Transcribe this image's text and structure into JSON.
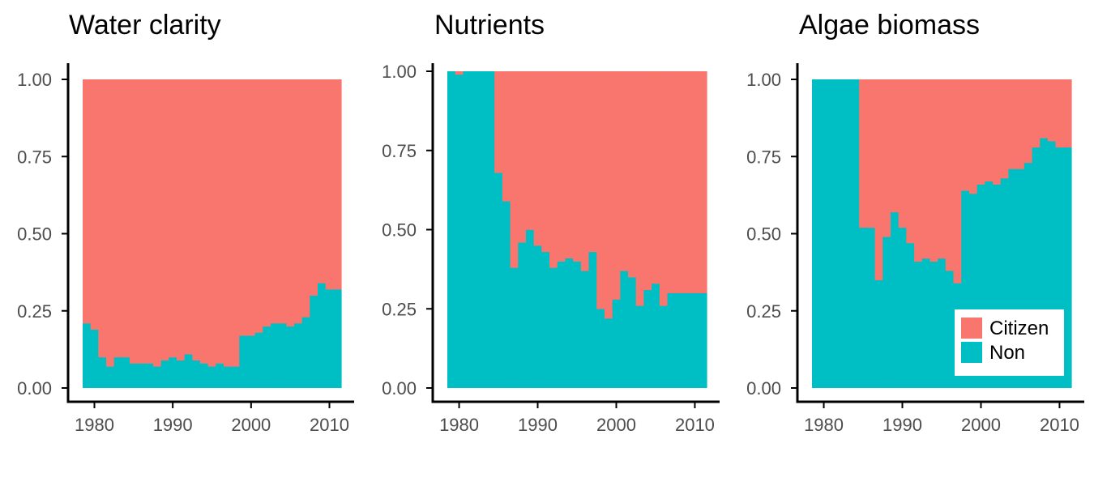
{
  "colors": {
    "citizen": "#F8766D",
    "non": "#00BFC4",
    "axis": "#000000",
    "tick_text": "#4d4d4d"
  },
  "legend": {
    "position": "bottom-right of third panel",
    "entries": [
      {
        "label": "Citizen",
        "color": "#F8766D"
      },
      {
        "label": "Non",
        "color": "#00BFC4"
      }
    ]
  },
  "chart_data": [
    {
      "type": "bar",
      "stacked": "fill",
      "title": "Water clarity",
      "xlabel": "",
      "ylabel": "",
      "xlim": [
        1978.4,
        2011.8
      ],
      "ylim": [
        0,
        1
      ],
      "x_ticks": [
        1980,
        1990,
        2000,
        2010
      ],
      "y_ticks": [
        "0.00",
        "0.25",
        "0.50",
        "0.75",
        "1.00"
      ],
      "x": [
        1979,
        1980,
        1981,
        1982,
        1983,
        1984,
        1985,
        1986,
        1987,
        1988,
        1989,
        1990,
        1991,
        1992,
        1993,
        1994,
        1995,
        1996,
        1997,
        1998,
        1999,
        2000,
        2001,
        2002,
        2003,
        2004,
        2005,
        2006,
        2007,
        2008,
        2009,
        2010,
        2011
      ],
      "series": [
        {
          "name": "Non",
          "values": [
            0.21,
            0.19,
            0.1,
            0.07,
            0.1,
            0.1,
            0.08,
            0.08,
            0.08,
            0.07,
            0.09,
            0.1,
            0.09,
            0.11,
            0.09,
            0.08,
            0.07,
            0.08,
            0.07,
            0.07,
            0.17,
            0.17,
            0.18,
            0.2,
            0.21,
            0.21,
            0.2,
            0.21,
            0.23,
            0.3,
            0.34,
            0.32,
            0.32
          ]
        },
        {
          "name": "Citizen",
          "values": [
            0.79,
            0.81,
            0.9,
            0.93,
            0.9,
            0.9,
            0.92,
            0.92,
            0.92,
            0.93,
            0.91,
            0.9,
            0.91,
            0.89,
            0.91,
            0.92,
            0.93,
            0.92,
            0.93,
            0.93,
            0.83,
            0.83,
            0.82,
            0.8,
            0.79,
            0.79,
            0.8,
            0.79,
            0.77,
            0.7,
            0.66,
            0.68,
            0.68
          ]
        }
      ]
    },
    {
      "type": "bar",
      "stacked": "fill",
      "title": "Nutrients",
      "xlabel": "",
      "ylabel": "",
      "xlim": [
        1978.4,
        2011.8
      ],
      "ylim": [
        0,
        1
      ],
      "x_ticks": [
        1980,
        1990,
        2000,
        2010
      ],
      "y_ticks": [
        "0.00",
        "0.25",
        "0.50",
        "0.75",
        "1.00"
      ],
      "x": [
        1979,
        1980,
        1981,
        1982,
        1983,
        1984,
        1985,
        1986,
        1987,
        1988,
        1989,
        1990,
        1991,
        1992,
        1993,
        1994,
        1995,
        1996,
        1997,
        1998,
        1999,
        2000,
        2001,
        2002,
        2003,
        2004,
        2005,
        2006,
        2007,
        2008,
        2009,
        2010,
        2011
      ],
      "series": [
        {
          "name": "Non",
          "values": [
            1.0,
            0.99,
            1.0,
            1.0,
            1.0,
            1.0,
            0.68,
            0.59,
            0.38,
            0.46,
            0.5,
            0.45,
            0.43,
            0.38,
            0.4,
            0.41,
            0.4,
            0.37,
            0.43,
            0.25,
            0.22,
            0.28,
            0.37,
            0.35,
            0.26,
            0.31,
            0.33,
            0.26,
            0.3,
            0.3,
            0.3,
            0.3,
            0.3
          ]
        },
        {
          "name": "Citizen",
          "values": [
            0.0,
            0.01,
            0.0,
            0.0,
            0.0,
            0.0,
            0.32,
            0.41,
            0.62,
            0.54,
            0.5,
            0.55,
            0.57,
            0.62,
            0.6,
            0.59,
            0.6,
            0.63,
            0.57,
            0.75,
            0.78,
            0.72,
            0.63,
            0.65,
            0.74,
            0.69,
            0.67,
            0.74,
            0.7,
            0.7,
            0.7,
            0.7,
            0.7
          ]
        }
      ]
    },
    {
      "type": "bar",
      "stacked": "fill",
      "title": "Algae biomass",
      "xlabel": "",
      "ylabel": "",
      "xlim": [
        1978.4,
        2011.8
      ],
      "ylim": [
        0,
        1
      ],
      "x_ticks": [
        1980,
        1990,
        2000,
        2010
      ],
      "y_ticks": [
        "0.00",
        "0.25",
        "0.50",
        "0.75",
        "1.00"
      ],
      "x": [
        1979,
        1980,
        1981,
        1982,
        1983,
        1984,
        1985,
        1986,
        1987,
        1988,
        1989,
        1990,
        1991,
        1992,
        1993,
        1994,
        1995,
        1996,
        1997,
        1998,
        1999,
        2000,
        2001,
        2002,
        2003,
        2004,
        2005,
        2006,
        2007,
        2008,
        2009,
        2010,
        2011
      ],
      "series": [
        {
          "name": "Non",
          "values": [
            1.0,
            1.0,
            1.0,
            1.0,
            1.0,
            1.0,
            0.52,
            0.52,
            0.35,
            0.49,
            0.57,
            0.52,
            0.47,
            0.41,
            0.42,
            0.41,
            0.42,
            0.38,
            0.34,
            0.64,
            0.63,
            0.66,
            0.67,
            0.66,
            0.68,
            0.71,
            0.71,
            0.73,
            0.78,
            0.81,
            0.8,
            0.78,
            0.78
          ]
        },
        {
          "name": "Citizen",
          "values": [
            0.0,
            0.0,
            0.0,
            0.0,
            0.0,
            0.0,
            0.48,
            0.48,
            0.65,
            0.51,
            0.43,
            0.48,
            0.53,
            0.59,
            0.58,
            0.59,
            0.58,
            0.62,
            0.66,
            0.36,
            0.37,
            0.34,
            0.33,
            0.34,
            0.32,
            0.29,
            0.29,
            0.27,
            0.22,
            0.19,
            0.2,
            0.22,
            0.22
          ]
        }
      ]
    }
  ]
}
